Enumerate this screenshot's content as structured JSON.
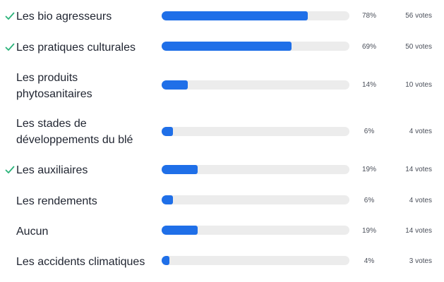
{
  "poll": {
    "accent_color": "#1f6fe8",
    "check_color": "#2bb37a",
    "track_color": "#ececec",
    "options": [
      {
        "label": "Les bio agresseurs",
        "percent": 78,
        "percent_label": "78%",
        "votes_label": "56 votes",
        "checked": true,
        "check_icon": "checkmark-icon"
      },
      {
        "label": "Les pratiques culturales",
        "percent": 69,
        "percent_label": "69%",
        "votes_label": "50 votes",
        "checked": true,
        "check_icon": "checkmark-icon"
      },
      {
        "label": "Les produits phytosanitaires",
        "percent": 14,
        "percent_label": "14%",
        "votes_label": "10 votes",
        "checked": false
      },
      {
        "label": "Les stades de développements du blé",
        "percent": 6,
        "percent_label": "6%",
        "votes_label": "4 votes",
        "checked": false
      },
      {
        "label": "Les auxiliaires",
        "percent": 19,
        "percent_label": "19%",
        "votes_label": "14 votes",
        "checked": true,
        "check_icon": "checkmark-icon"
      },
      {
        "label": "Les rendements",
        "percent": 6,
        "percent_label": "6%",
        "votes_label": "4 votes",
        "checked": false
      },
      {
        "label": "Aucun",
        "percent": 19,
        "percent_label": "19%",
        "votes_label": "14 votes",
        "checked": false
      },
      {
        "label": "Les accidents climatiques",
        "percent": 4,
        "percent_label": "4%",
        "votes_label": "3 votes",
        "checked": false
      }
    ]
  }
}
